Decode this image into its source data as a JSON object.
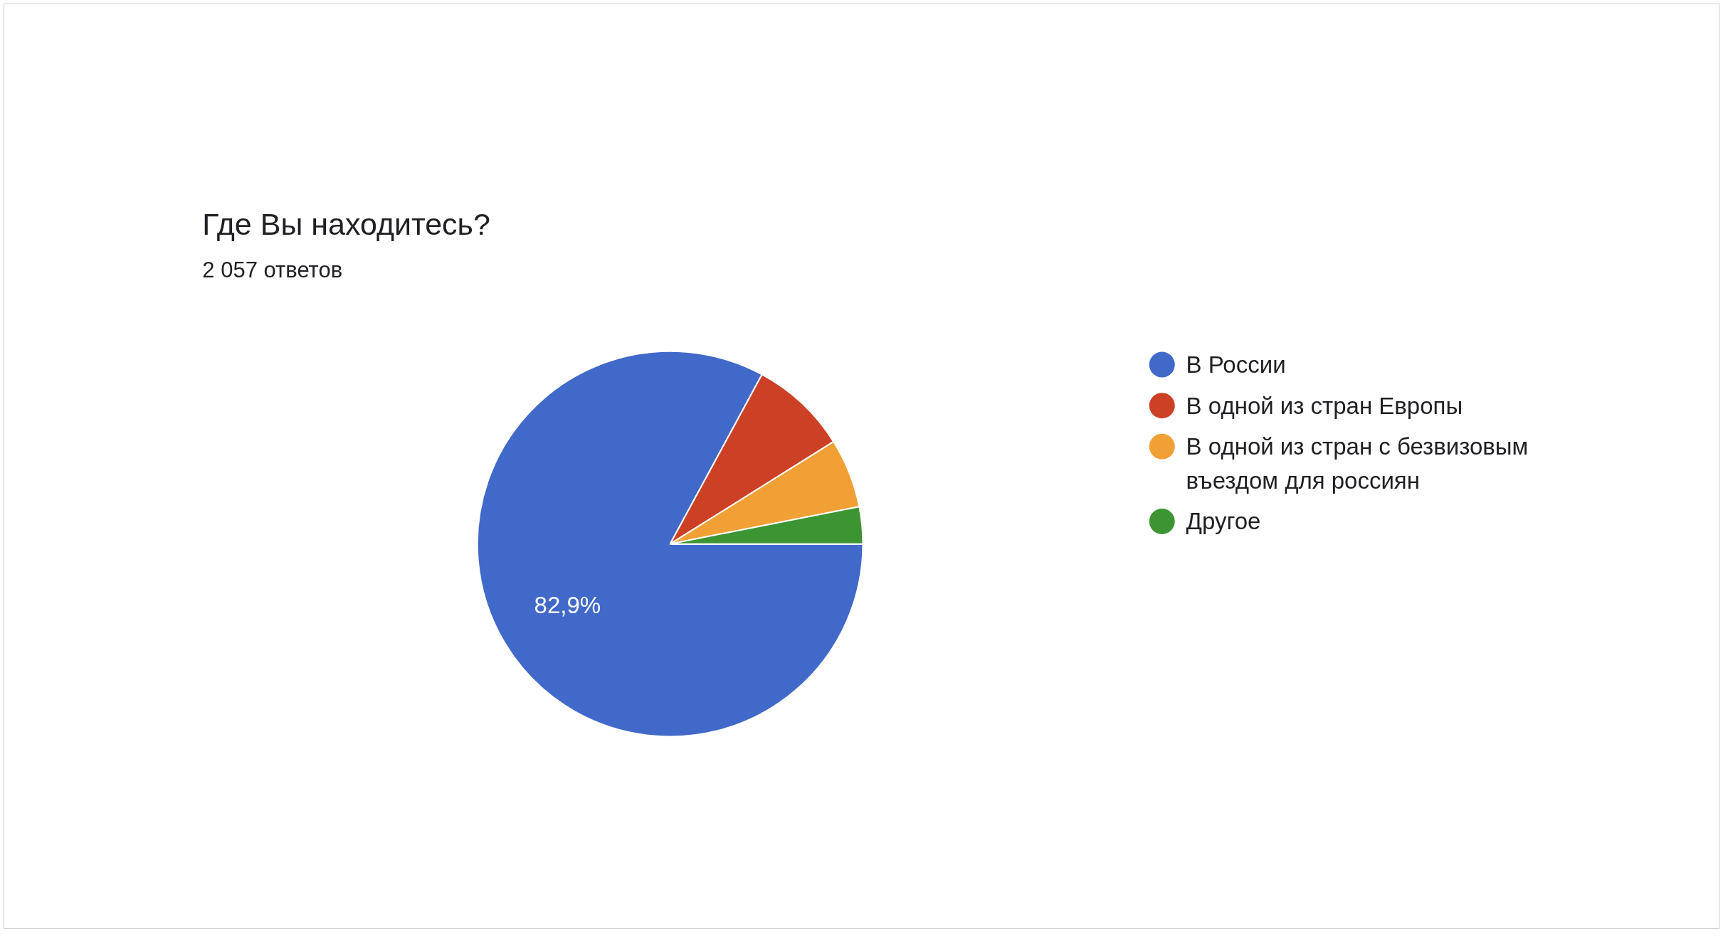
{
  "chart_data": {
    "type": "pie",
    "title": "Где Вы находитесь?",
    "subtitle": "2 057 ответов",
    "categories": [
      "В России",
      "В одной из стран Европы",
      "В одной из стран с безвизовым въездом для россиян",
      "Другое"
    ],
    "values": [
      82.9,
      8.2,
      5.8,
      3.1
    ],
    "colors": [
      "#4169c9",
      "#cc4125",
      "#f1a035",
      "#3d9433"
    ],
    "value_labels": [
      "82,9%",
      null,
      null,
      null
    ],
    "legend": "right"
  }
}
